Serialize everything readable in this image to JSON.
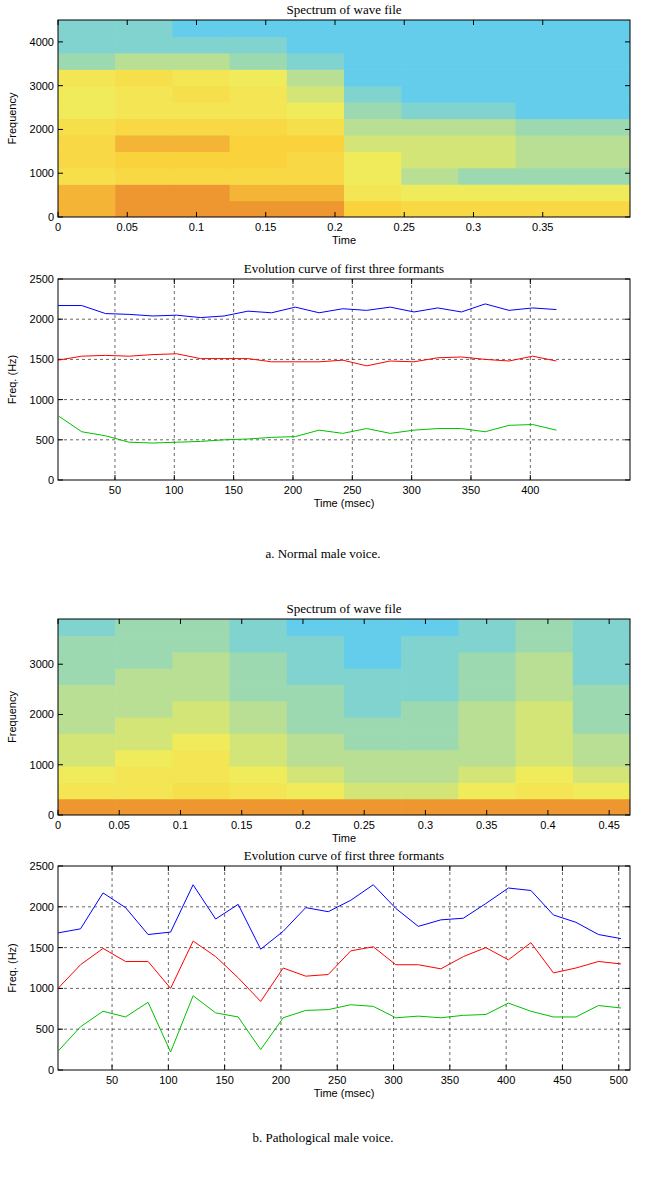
{
  "chart_data": [
    {
      "type": "heatmap",
      "title": "Spectrum of wave file",
      "x_label": "Time",
      "y_label": "Frequency",
      "xlim": [
        0,
        0.413
      ],
      "ylim": [
        0,
        4500
      ],
      "xticks": [
        0,
        0.05,
        0.1,
        0.15,
        0.2,
        0.25,
        0.3,
        0.35
      ],
      "yticks": [
        0,
        1000,
        2000,
        3000,
        4000
      ],
      "zlim": [
        0,
        1
      ],
      "grid": false,
      "cells": [
        [
          0.8,
          0.85,
          0.85,
          0.85,
          0.85,
          0.75,
          0.7,
          0.7,
          0.7,
          0.7
        ],
        [
          0.8,
          0.85,
          0.85,
          0.8,
          0.8,
          0.6,
          0.55,
          0.55,
          0.55,
          0.55
        ],
        [
          0.65,
          0.7,
          0.7,
          0.7,
          0.7,
          0.55,
          0.45,
          0.4,
          0.4,
          0.4
        ],
        [
          0.7,
          0.75,
          0.75,
          0.75,
          0.7,
          0.55,
          0.5,
          0.5,
          0.45,
          0.45
        ],
        [
          0.7,
          0.8,
          0.8,
          0.75,
          0.75,
          0.5,
          0.5,
          0.5,
          0.45,
          0.45
        ],
        [
          0.65,
          0.7,
          0.7,
          0.7,
          0.65,
          0.45,
          0.45,
          0.45,
          0.4,
          0.4
        ],
        [
          0.55,
          0.6,
          0.6,
          0.6,
          0.55,
          0.4,
          0.35,
          0.35,
          0.3,
          0.3
        ],
        [
          0.55,
          0.6,
          0.65,
          0.6,
          0.5,
          0.35,
          0.3,
          0.3,
          0.3,
          0.3
        ],
        [
          0.6,
          0.65,
          0.6,
          0.55,
          0.45,
          0.3,
          0.3,
          0.3,
          0.3,
          0.3
        ],
        [
          0.4,
          0.45,
          0.45,
          0.4,
          0.35,
          0.3,
          0.3,
          0.3,
          0.3,
          0.3
        ],
        [
          0.35,
          0.35,
          0.35,
          0.35,
          0.3,
          0.3,
          0.3,
          0.3,
          0.3,
          0.3
        ],
        [
          0.35,
          0.35,
          0.3,
          0.3,
          0.3,
          0.3,
          0.3,
          0.3,
          0.3,
          0.3
        ]
      ]
    },
    {
      "type": "line",
      "title": "Evolution curve of first three formants",
      "x_label": "Time (msec)",
      "y_label": "Freq. (Hz)",
      "xlim": [
        2,
        484
      ],
      "ylim": [
        0,
        2500
      ],
      "xticks": [
        50,
        100,
        150,
        200,
        250,
        300,
        350,
        400
      ],
      "yticks": [
        0,
        500,
        1000,
        1500,
        2000,
        2500
      ],
      "grid": true,
      "x": [
        2,
        22,
        42,
        62,
        82,
        102,
        122,
        142,
        162,
        182,
        202,
        222,
        242,
        262,
        282,
        302,
        322,
        342,
        362,
        382,
        402,
        422
      ],
      "series": [
        {
          "color": "#0000ff",
          "values": [
            2170,
            2170,
            2070,
            2060,
            2040,
            2050,
            2020,
            2040,
            2100,
            2080,
            2150,
            2080,
            2130,
            2110,
            2150,
            2090,
            2140,
            2090,
            2190,
            2110,
            2140,
            2120
          ]
        },
        {
          "color": "#ff0000",
          "values": [
            1490,
            1540,
            1550,
            1540,
            1560,
            1570,
            1510,
            1510,
            1510,
            1470,
            1470,
            1470,
            1490,
            1420,
            1480,
            1470,
            1520,
            1530,
            1500,
            1480,
            1540,
            1480
          ]
        },
        {
          "color": "#00c000",
          "values": [
            800,
            600,
            550,
            470,
            460,
            470,
            480,
            500,
            510,
            530,
            540,
            620,
            580,
            640,
            580,
            620,
            640,
            640,
            600,
            680,
            690,
            620
          ]
        }
      ]
    },
    {
      "type": "heatmap",
      "title": "Spectrum of wave file",
      "x_label": "Time",
      "y_label": "Frequency",
      "xlim": [
        0,
        0.467
      ],
      "ylim": [
        0,
        3900
      ],
      "xticks": [
        0,
        0.05,
        0.1,
        0.15,
        0.2,
        0.25,
        0.3,
        0.35,
        0.4,
        0.45
      ],
      "yticks": [
        0,
        1000,
        2000,
        3000
      ],
      "zlim": [
        0,
        1
      ],
      "grid": false,
      "cells": [
        [
          0.85,
          0.85,
          0.85,
          0.85,
          0.85,
          0.85,
          0.85,
          0.85,
          0.85,
          0.85
        ],
        [
          0.6,
          0.6,
          0.65,
          0.6,
          0.55,
          0.5,
          0.5,
          0.55,
          0.6,
          0.55
        ],
        [
          0.55,
          0.6,
          0.6,
          0.55,
          0.5,
          0.45,
          0.45,
          0.5,
          0.55,
          0.5
        ],
        [
          0.5,
          0.55,
          0.6,
          0.5,
          0.45,
          0.45,
          0.45,
          0.45,
          0.5,
          0.45
        ],
        [
          0.5,
          0.5,
          0.55,
          0.5,
          0.45,
          0.4,
          0.4,
          0.45,
          0.5,
          0.45
        ],
        [
          0.45,
          0.5,
          0.5,
          0.45,
          0.4,
          0.4,
          0.4,
          0.45,
          0.5,
          0.4
        ],
        [
          0.45,
          0.45,
          0.5,
          0.45,
          0.4,
          0.35,
          0.4,
          0.45,
          0.5,
          0.4
        ],
        [
          0.45,
          0.45,
          0.45,
          0.4,
          0.4,
          0.35,
          0.35,
          0.4,
          0.45,
          0.4
        ],
        [
          0.4,
          0.45,
          0.45,
          0.4,
          0.35,
          0.35,
          0.35,
          0.4,
          0.45,
          0.35
        ],
        [
          0.4,
          0.4,
          0.45,
          0.4,
          0.35,
          0.3,
          0.35,
          0.4,
          0.45,
          0.35
        ],
        [
          0.4,
          0.4,
          0.4,
          0.35,
          0.35,
          0.3,
          0.35,
          0.35,
          0.4,
          0.35
        ],
        [
          0.35,
          0.4,
          0.4,
          0.35,
          0.3,
          0.3,
          0.3,
          0.35,
          0.4,
          0.35
        ]
      ]
    },
    {
      "type": "line",
      "title": "Evolution curve of first three formants",
      "x_label": "Time (msec)",
      "y_label": "Freq. (Hz)",
      "xlim": [
        2,
        510
      ],
      "ylim": [
        0,
        2500
      ],
      "xticks": [
        50,
        100,
        150,
        200,
        250,
        300,
        350,
        400,
        450,
        500
      ],
      "yticks": [
        0,
        500,
        1000,
        1500,
        2000,
        2500
      ],
      "grid": true,
      "x": [
        2,
        22,
        42,
        62,
        82,
        102,
        122,
        142,
        162,
        182,
        202,
        222,
        242,
        262,
        282,
        302,
        322,
        342,
        362,
        382,
        402,
        422,
        442,
        462,
        482,
        502
      ],
      "series": [
        {
          "color": "#0000ff",
          "values": [
            1680,
            1730,
            2170,
            1990,
            1660,
            1690,
            2270,
            1850,
            2030,
            1480,
            1700,
            1990,
            1940,
            2080,
            2270,
            1980,
            1760,
            1840,
            1860,
            2040,
            2230,
            2200,
            1900,
            1810,
            1660,
            1610
          ]
        },
        {
          "color": "#ff0000",
          "values": [
            1000,
            1290,
            1490,
            1330,
            1330,
            1000,
            1580,
            1390,
            1130,
            840,
            1250,
            1150,
            1170,
            1460,
            1510,
            1290,
            1290,
            1240,
            1390,
            1500,
            1350,
            1560,
            1190,
            1250,
            1330,
            1300
          ]
        },
        {
          "color": "#00c000",
          "values": [
            230,
            530,
            720,
            650,
            830,
            220,
            910,
            700,
            650,
            250,
            640,
            730,
            740,
            800,
            780,
            640,
            660,
            640,
            670,
            680,
            820,
            720,
            650,
            650,
            790,
            760
          ]
        }
      ]
    }
  ],
  "captions": [
    "a. Normal male voice.",
    "b. Pathological male voice."
  ]
}
